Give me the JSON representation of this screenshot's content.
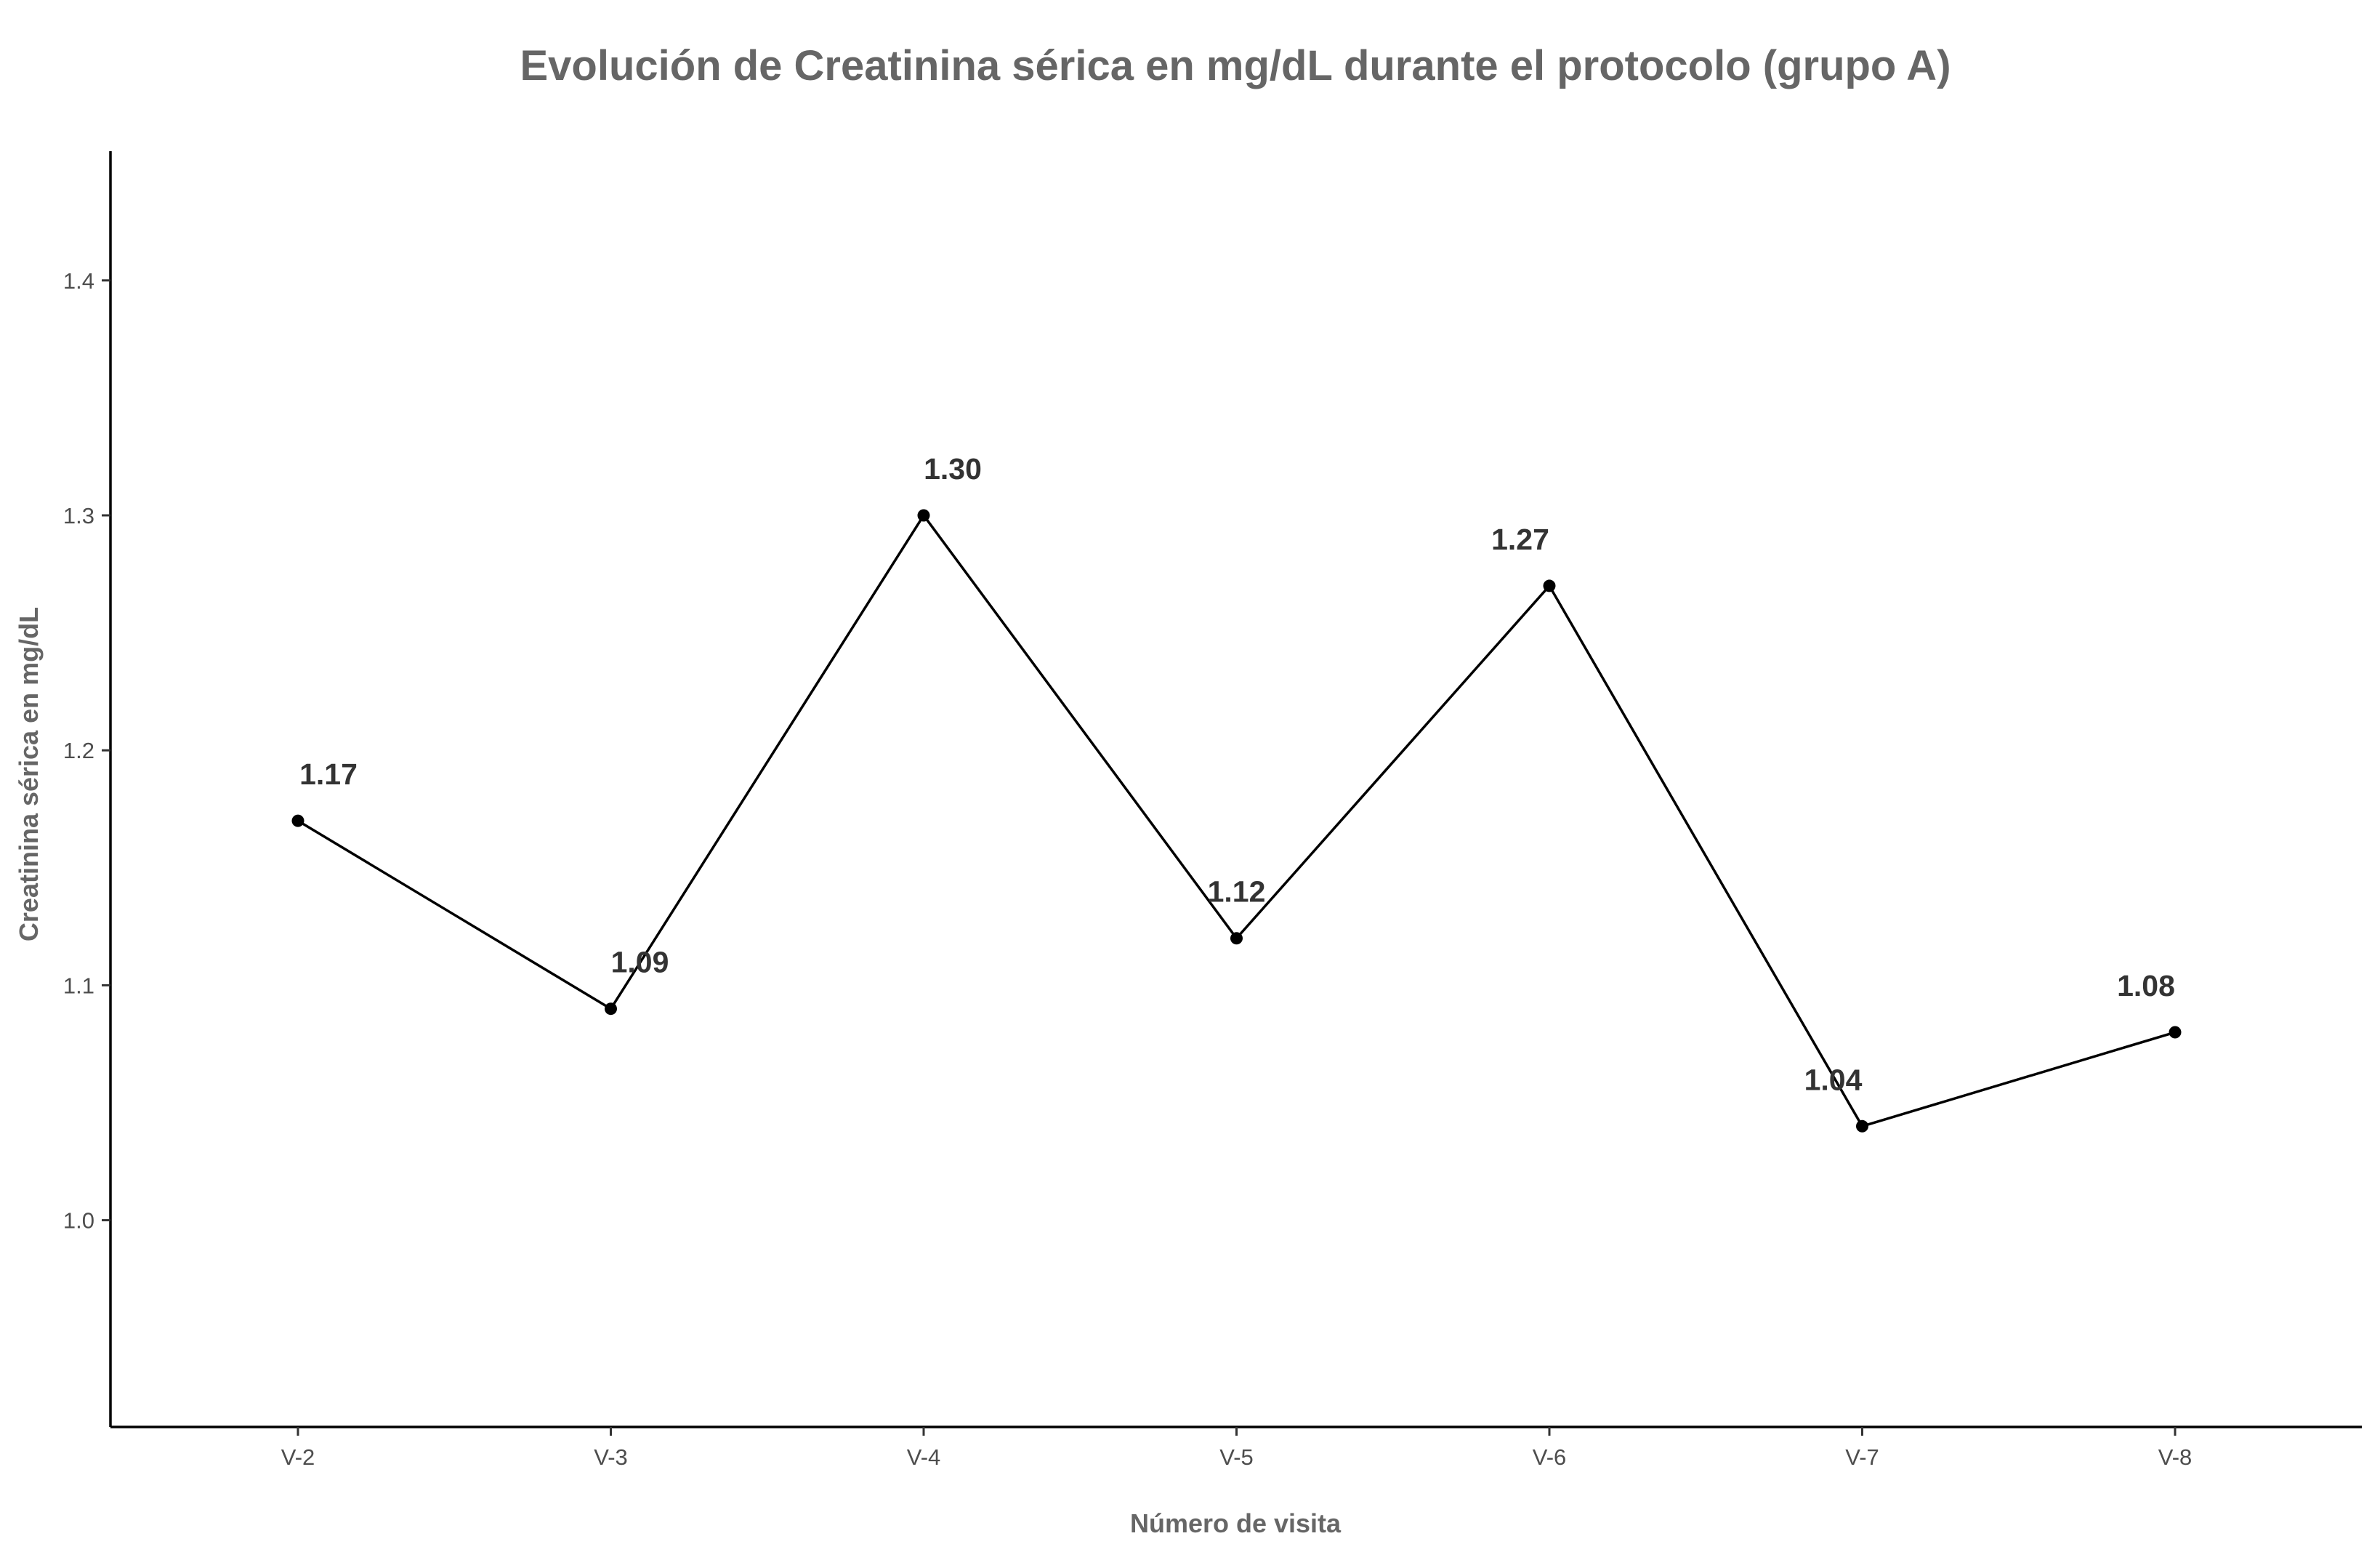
{
  "chart_data": {
    "type": "line",
    "title": "Evolución de Creatinina sérica en mg/dL durante el protocolo (grupo A)",
    "xlabel": "Número de visita",
    "ylabel": "Creatinina sérica en mg/dL",
    "categories": [
      "V-2",
      "V-3",
      "V-4",
      "V-5",
      "V-6",
      "V-7",
      "V-8"
    ],
    "values": [
      1.17,
      1.09,
      1.3,
      1.12,
      1.27,
      1.04,
      1.08
    ],
    "data_labels": [
      "1.17",
      "1.09",
      "1.30",
      "1.12",
      "1.27",
      "1.04",
      "1.08"
    ],
    "ylim": [
      0.912,
      1.455
    ],
    "yticks": [
      1.0,
      1.1,
      1.2,
      1.3,
      1.4
    ],
    "ytick_labels": [
      "1.0",
      "1.1",
      "1.2",
      "1.3",
      "1.4"
    ],
    "grid": false,
    "legend": "none",
    "colors": {
      "line": "#000000",
      "point": "#000000",
      "axis": "#000000",
      "title": "#666666",
      "data_label": "#333333"
    }
  }
}
